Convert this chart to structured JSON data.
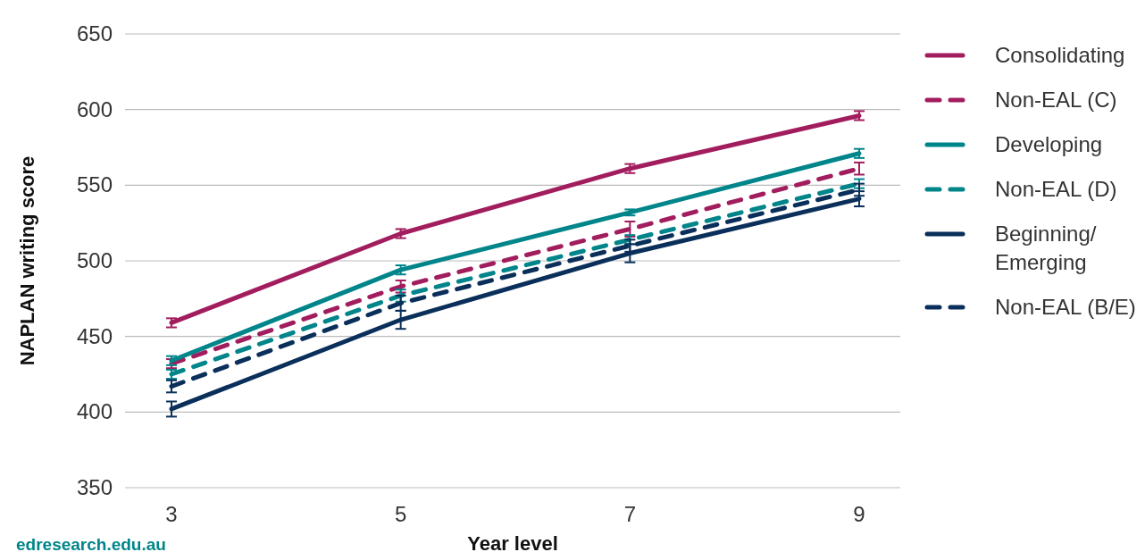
{
  "chart_data": {
    "type": "line",
    "xlabel": "Year level",
    "ylabel": "NAPLAN writing score",
    "categories": [
      "3",
      "5",
      "7",
      "9"
    ],
    "ylim": [
      350,
      650
    ],
    "yticks": [
      350,
      400,
      450,
      500,
      550,
      600,
      650
    ],
    "grid": "y",
    "legend": "right",
    "marker": "none",
    "series": [
      {
        "name": "Consolidating",
        "color": "#a21d5e",
        "line_style": "solid",
        "values": [
          459,
          518,
          561,
          596
        ],
        "errors": [
          3,
          3,
          3,
          3
        ]
      },
      {
        "name": "Non-EAL (C)",
        "color": "#a21d5e",
        "line_style": "dashed",
        "values": [
          432,
          483,
          521,
          561
        ],
        "errors": [
          3,
          4,
          5,
          4
        ]
      },
      {
        "name": "Developing",
        "color": "#00858a",
        "line_style": "solid",
        "values": [
          434,
          494,
          532,
          571
        ],
        "errors": [
          3,
          3,
          2,
          3
        ]
      },
      {
        "name": "Non-EAL (D)",
        "color": "#00858a",
        "line_style": "dashed",
        "values": [
          425,
          477,
          514,
          551
        ],
        "errors": [
          3,
          4,
          3,
          3
        ]
      },
      {
        "name": "Beginning/ Emerging",
        "color": "#0a2f5a",
        "line_style": "solid",
        "values": [
          402,
          461,
          505,
          541
        ],
        "errors": [
          5,
          6,
          6,
          5
        ]
      },
      {
        "name": "Non-EAL (B/E)",
        "color": "#0a2f5a",
        "line_style": "dashed",
        "values": [
          417,
          472,
          510,
          547
        ],
        "errors": [
          4,
          5,
          4,
          4
        ]
      }
    ],
    "annotations": [
      "edresearch.edu.au"
    ]
  }
}
